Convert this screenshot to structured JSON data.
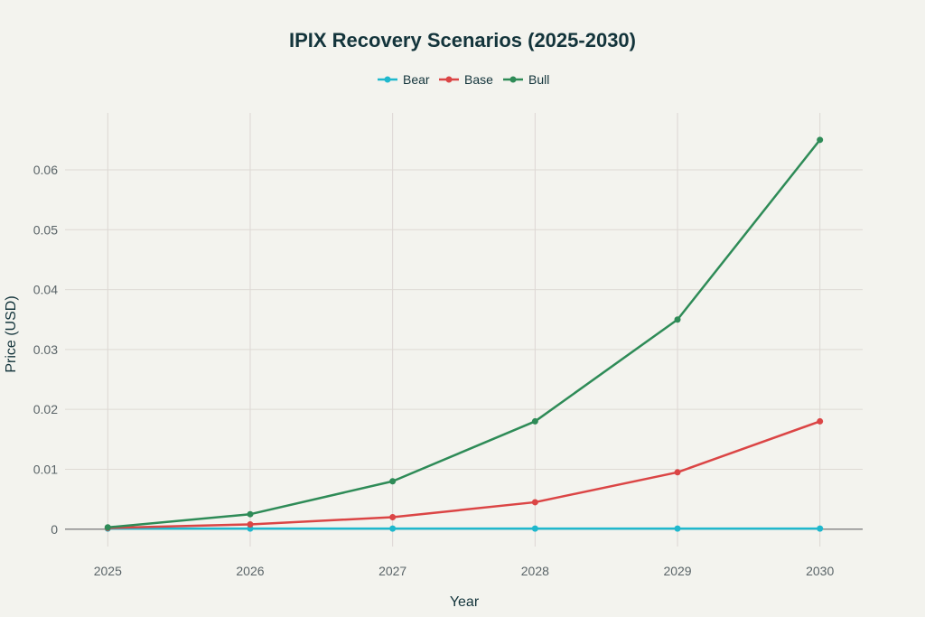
{
  "chart_data": {
    "type": "line",
    "title": "IPIX Recovery Scenarios (2025-2030)",
    "xlabel": "Year",
    "ylabel": "Price (USD)",
    "x": [
      2025,
      2026,
      2027,
      2028,
      2029,
      2030
    ],
    "x_tick_labels": [
      "2025",
      "2026",
      "2027",
      "2028",
      "2029",
      "2030"
    ],
    "y_ticks": [
      0,
      0.01,
      0.02,
      0.03,
      0.04,
      0.05,
      0.06
    ],
    "y_tick_labels": [
      "0",
      "0.01",
      "0.02",
      "0.03",
      "0.04",
      "0.05",
      "0.06"
    ],
    "ylim": [
      -0.0029,
      0.0695
    ],
    "xlim": [
      2024.7,
      2030.3
    ],
    "grid": true,
    "legend_position": "top-center",
    "series": [
      {
        "name": "Bear",
        "color": "#1FB8CD",
        "values": [
          0.0001,
          0.0001,
          0.0001,
          0.0001,
          0.0001,
          0.0001
        ]
      },
      {
        "name": "Base",
        "color": "#DB4545",
        "values": [
          0.0002,
          0.0008,
          0.002,
          0.0045,
          0.0095,
          0.018
        ]
      },
      {
        "name": "Bull",
        "color": "#2E8B57",
        "values": [
          0.0003,
          0.0025,
          0.008,
          0.018,
          0.035,
          0.065
        ]
      }
    ]
  }
}
